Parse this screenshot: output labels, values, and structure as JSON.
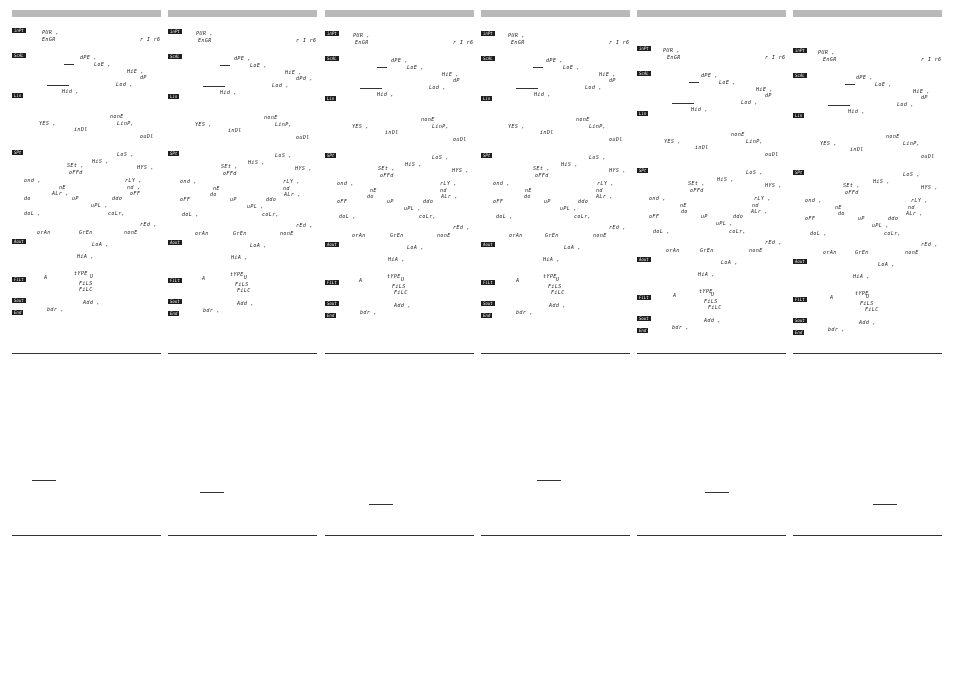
{
  "sheets": [
    {
      "lines": [
        "PUR ,",
        "EnGR",
        "r I  r6",
        "dPE ,",
        "LoE ,",
        "HiE ,",
        "dP",
        "Lod ,",
        "Hid ,",
        "nonE",
        "YES ,",
        "LinP,",
        "inDl",
        "ouDl",
        "LoS ,",
        "SEt ,",
        "HiS ,",
        "HYS ,",
        "oFFd",
        "ond ,",
        "rLY ,",
        "nE",
        "nd ,",
        "ALr ,",
        "oFF",
        "do",
        "uP",
        "ddo",
        "uPL ,",
        "doL ,",
        "coLr,",
        "rEd ,",
        "orAn",
        "GrEn",
        "nonE",
        "LoA ,",
        "HiA ,",
        "tYPE",
        "A",
        "U",
        "FiLS",
        "FiLC",
        "Add ,",
        "bdr ,"
      ],
      "tags": [
        "inPt",
        "ScAL",
        "Lin",
        "SPt",
        "Aout",
        "FiLt",
        "Sout",
        "End"
      ]
    },
    {
      "lines": [
        "PUR ,",
        "EnGR",
        "r I  r6",
        "dPE ,",
        "LoE ,",
        "HiE ,",
        "dPd ,",
        "Lod ,",
        "Hid ,",
        "nonE",
        "YES ,",
        "LinP,",
        "inDl",
        "ouDl",
        "LoS ,",
        "SEt ,",
        "HiS ,",
        "HYS ,",
        "oFFd",
        "ond ,",
        "rLY ,",
        "nE",
        "nd",
        "do",
        "ALr ,",
        "oFF",
        "uP",
        "ddo",
        "uPL ,",
        "doL ,",
        "coLr,",
        "rEd ,",
        "orAn",
        "GrEn",
        "nonE",
        "LoA ,",
        "HiA ,",
        "tYPE",
        "A",
        "U",
        "FiLS",
        "FiLC",
        "Add ,",
        "bdr ,"
      ],
      "tags": [
        "inPt",
        "ScAL",
        "Lin",
        "SPt",
        "Aout",
        "FiLt",
        "Sout",
        "End"
      ]
    },
    {
      "lines": [
        "PUR ,",
        "EnGR",
        "r I  r6",
        "dPE ,",
        "LoE ,",
        "HiE ,",
        "dP",
        "Lod ,",
        "Hid ,",
        "nonE",
        "YES ,",
        "LinP,",
        "inDl",
        "ouDl",
        "LoS ,",
        "SEt ,",
        "HiS ,",
        "HYS ,",
        "oFFd",
        "ond ,",
        "rLY ,",
        "nE",
        "nd",
        "do",
        "ALr ,",
        "oFF",
        "uP",
        "ddo",
        "uPL ,",
        "doL ,",
        "coLr,",
        "rEd ,",
        "orAn",
        "GrEn",
        "nonE",
        "LoA ,",
        "HiA ,",
        "tYPE",
        "A",
        "U",
        "FiLS",
        "FiLC",
        "Add ,",
        "bdr ,"
      ],
      "tags": [
        "inPt",
        "ScAL",
        "Lin",
        "SPt",
        "Aout",
        "FiLt",
        "Sout",
        "End"
      ]
    },
    {
      "lines": [
        "PUR ,",
        "EnGR",
        "r I  r6",
        "dPE ,",
        "LoE ,",
        "HiE ,",
        "dP",
        "Lod ,",
        "Hid ,",
        "nonE",
        "YES ,",
        "LinP,",
        "inDl",
        "ouDl",
        "LoS ,",
        "SEt ,",
        "HiS ,",
        "HYS ,",
        "oFFd",
        "ond ,",
        "rLY ,",
        "nE",
        "nd",
        "do",
        "ALr ,",
        "oFF",
        "uP",
        "ddo",
        "uPL ,",
        "doL ,",
        "coLr,",
        "rEd ,",
        "orAn",
        "GrEn",
        "nonE",
        "LoA ,",
        "HiA ,",
        "tYPE",
        "A",
        "U",
        "FiLS",
        "FiLC",
        "Add ,",
        "bdr ,"
      ],
      "tags": [
        "inPt",
        "ScAL",
        "Lin",
        "SPt",
        "Aout",
        "FiLt",
        "Sout",
        "End"
      ]
    },
    {
      "lines": [
        "PUR ,",
        "EnGR",
        "r I  r6",
        "dPE ,",
        "LoE ,",
        "HiE ,",
        "dP",
        "Lod ,",
        "Hid ,",
        "nonE",
        "YES ,",
        "LinP,",
        "inDl",
        "ouDl",
        "LoS ,",
        "SEt ,",
        "HiS ,",
        "HYS ,",
        "oFFd",
        "ond ,",
        "rLY ,",
        "nE",
        "nd",
        "do",
        "ALr ,",
        "oFF",
        "uP",
        "ddo",
        "uPL ,",
        "doL ,",
        "coLr,",
        "rEd ,",
        "orAn",
        "GrEn",
        "nonE",
        "LoA ,",
        "HiA ,",
        "tYPE",
        "A",
        "U",
        "FiLS",
        "FiLC",
        "Add ,",
        "bdr ,"
      ],
      "tags": [
        "inPt",
        "ScAL",
        "Lin",
        "SPt",
        "Aout",
        "FiLt",
        "Sout",
        "End"
      ]
    },
    {
      "lines": [
        "PUR ,",
        "EnGR",
        "r I  r6",
        "dPE ,",
        "LoE ,",
        "HiE ,",
        "dP",
        "Lod ,",
        "Hid ,",
        "nonE",
        "YES ,",
        "LinP,",
        "inDl",
        "ouDl",
        "LoS ,",
        "SEt ,",
        "HiS ,",
        "HYS ,",
        "oFFd",
        "ond ,",
        "rLY ,",
        "nE",
        "nd",
        "do",
        "ALr ,",
        "oFF",
        "uP",
        "ddo",
        "uPL ,",
        "doL ,",
        "coLr,",
        "rEd ,",
        "orAn",
        "GrEn",
        "nonE",
        "LoA ,",
        "HiA ,",
        "tYPE",
        "A",
        "U",
        "FiLS",
        "FiLC",
        "Add ,",
        "bdr ,"
      ],
      "tags": [
        "inPt",
        "ScAL",
        "Lin",
        "SPt",
        "Aout",
        "FiLt",
        "Sout",
        "End"
      ]
    }
  ],
  "colors": {
    "header_bar": "#b9b9b9",
    "tag_bg": "#1e1e1e",
    "tag_text": "#ffffff",
    "text": "#1a1a1a"
  }
}
